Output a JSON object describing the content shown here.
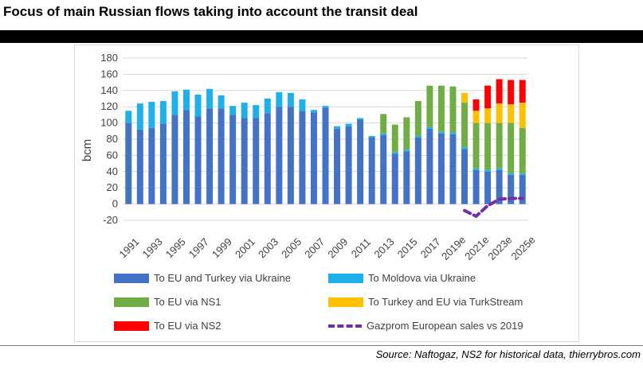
{
  "title": "Focus of main Russian flows taking into account the transit deal",
  "source": "Source: Naftogaz, NS2 for historical data, thierrybros.com",
  "chart_data": {
    "type": "bar",
    "stacked": true,
    "ylabel": "bcm",
    "ylim": [
      -20,
      180
    ],
    "yticks": [
      -20,
      0,
      20,
      40,
      60,
      80,
      100,
      120,
      140,
      160,
      180
    ],
    "grid": true,
    "categories": [
      "1991",
      "1992",
      "1993",
      "1994",
      "1995",
      "1996",
      "1997",
      "1998",
      "1999",
      "2000",
      "2001",
      "2002",
      "2003",
      "2004",
      "2005",
      "2006",
      "2007",
      "2008",
      "2009",
      "2010",
      "2011",
      "2012",
      "2013",
      "2014",
      "2015",
      "2016",
      "2017",
      "2018",
      "2019e",
      "2020e",
      "2021e",
      "2022e",
      "2023e",
      "2024e",
      "2025e"
    ],
    "xtick_labels": [
      "1991",
      "",
      "1993",
      "",
      "1995",
      "",
      "1997",
      "",
      "1999",
      "",
      "2001",
      "",
      "2003",
      "",
      "2005",
      "",
      "2007",
      "",
      "2009",
      "",
      "2011",
      "",
      "2013",
      "",
      "2015",
      "",
      "2017",
      "",
      "2019e",
      "",
      "2021e",
      "",
      "2023e",
      "",
      "2025e"
    ],
    "series": [
      {
        "name": "To EU and Turkey via Ukraine",
        "color": "#4472c4",
        "values": [
          100,
          92,
          94,
          99,
          110,
          116,
          108,
          118,
          118,
          110,
          106,
          106,
          112,
          120,
          120,
          115,
          113,
          119,
          93,
          96,
          104,
          82,
          85,
          62,
          65,
          82,
          93,
          87,
          86,
          68,
          42,
          40,
          42,
          36,
          36
        ]
      },
      {
        "name": "To Moldova via Ukraine",
        "color": "#1fb0ea",
        "values": [
          15,
          32,
          32,
          28,
          29,
          25,
          27,
          24,
          16,
          11,
          19,
          16,
          18,
          18,
          17,
          14,
          3,
          2,
          3,
          3,
          2,
          2,
          2,
          2,
          2,
          2,
          2,
          2,
          2,
          2,
          2,
          2,
          2,
          2,
          2
        ]
      },
      {
        "name": "To EU via NS1",
        "color": "#70ad47",
        "values": [
          0,
          0,
          0,
          0,
          0,
          0,
          0,
          0,
          0,
          0,
          0,
          0,
          0,
          0,
          0,
          0,
          0,
          0,
          0,
          0,
          0,
          0,
          24,
          34,
          40,
          43,
          51,
          57,
          57,
          55,
          56,
          58,
          56,
          62,
          56
        ]
      },
      {
        "name": "To Turkey and EU via TurkStream",
        "color": "#ffc000",
        "values": [
          0,
          0,
          0,
          0,
          0,
          0,
          0,
          0,
          0,
          0,
          0,
          0,
          0,
          0,
          0,
          0,
          0,
          0,
          0,
          0,
          0,
          0,
          0,
          0,
          0,
          0,
          0,
          0,
          0,
          12,
          15,
          18,
          24,
          23,
          31
        ]
      },
      {
        "name": "To EU via NS2",
        "color": "#ff0000",
        "values": [
          0,
          0,
          0,
          0,
          0,
          0,
          0,
          0,
          0,
          0,
          0,
          0,
          0,
          0,
          0,
          0,
          0,
          0,
          0,
          0,
          0,
          0,
          0,
          0,
          0,
          0,
          0,
          0,
          0,
          0,
          14,
          28,
          30,
          30,
          28
        ]
      }
    ],
    "line": {
      "name": "Gazprom European sales vs 2019",
      "color": "#7030a0",
      "dashed": true,
      "categories": [
        "2020e",
        "2021e",
        "2022e",
        "2023e",
        "2024e",
        "2025e"
      ],
      "values": [
        -8,
        -15,
        -2,
        6,
        7,
        7
      ]
    },
    "legend": [
      "To EU and Turkey via Ukraine",
      "To Moldova via Ukraine",
      "To EU via NS1",
      "To Turkey and EU via TurkStream",
      "To EU via NS2",
      "Gazprom European sales vs 2019"
    ],
    "legend_position": "bottom"
  }
}
